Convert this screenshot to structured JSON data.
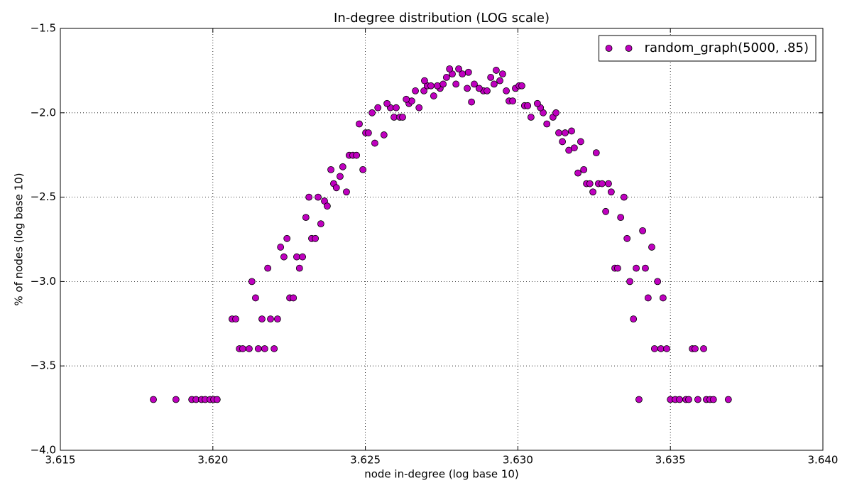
{
  "chart_data": {
    "type": "scatter",
    "title": "In-degree distribution (LOG scale)",
    "x_label": "node in-degree (log base 10)",
    "y_label": "% of nodes (log base 10)",
    "xlim": [
      3.615,
      3.64
    ],
    "ylim": [
      -4.0,
      -1.5
    ],
    "xticks": [
      3.615,
      {
        "value": 3.62,
        "label": "3.620"
      },
      3.625,
      {
        "value": 3.63,
        "label": "3.630"
      },
      3.635,
      {
        "value": 3.64,
        "label": "3.640"
      }
    ],
    "yticks": [
      {
        "value": -4.0,
        "label": "−4.0"
      },
      {
        "value": -3.5,
        "label": "−3.5"
      },
      {
        "value": -3.0,
        "label": "−3.0"
      },
      {
        "value": -2.5,
        "label": "−2.5"
      },
      {
        "value": -2.0,
        "label": "−2.0"
      },
      {
        "value": -1.5,
        "label": "−1.5"
      }
    ],
    "grid": true,
    "legend": "upper right",
    "x": [
      3.61805,
      3.61879,
      3.61931,
      3.61945,
      3.61963,
      3.61975,
      3.61991,
      3.62003,
      3.62014,
      3.63397,
      3.635,
      3.63516,
      3.6353,
      3.63551,
      3.6356,
      3.6359,
      3.63618,
      3.6363,
      3.63641,
      3.6369,
      3.62087,
      3.62098,
      3.62119,
      3.62149,
      3.6217,
      3.62201,
      3.63448,
      3.63469,
      3.63488,
      3.63572,
      3.63581,
      3.63609,
      3.62063,
      3.62075,
      3.62161,
      3.62189,
      3.62212,
      3.63379,
      3.6214,
      3.62252,
      3.62264,
      3.63427,
      3.63476,
      3.62128,
      3.63367,
      3.63458,
      3.6218,
      3.62284,
      3.63318,
      3.63327,
      3.63388,
      3.63418,
      3.62233,
      3.62275,
      3.62294,
      3.62222,
      3.63439,
      3.62243,
      3.62324,
      3.62336,
      3.63358,
      3.63409,
      3.62305,
      3.63337,
      3.62354,
      3.62315,
      3.62345,
      3.63348,
      3.62366,
      3.62375,
      3.63288,
      3.62438,
      3.63246,
      3.63306,
      3.62396,
      3.63225,
      3.63236,
      3.63264,
      3.63276,
      3.63297,
      3.62405,
      3.62417,
      3.62387,
      3.62492,
      3.63216,
      3.62426,
      3.63197,
      3.62447,
      3.62459,
      3.62471,
      3.63257,
      3.63167,
      3.63185,
      3.62531,
      3.63146,
      3.63206,
      3.62561,
      3.62501,
      3.6251,
      3.63134,
      3.63155,
      3.63176,
      3.6248,
      3.63095,
      3.62594,
      3.62613,
      3.62622,
      3.63043,
      3.63115,
      3.62522,
      3.63083,
      3.63125,
      3.62541,
      3.62582,
      3.62601,
      3.62676,
      3.63074,
      3.63022,
      3.63032,
      3.62571,
      3.62643,
      3.63064,
      3.62652,
      3.62971,
      3.62983,
      3.62634,
      3.62724,
      3.62664,
      3.62692,
      3.62887,
      3.62899,
      3.62962,
      3.62745,
      3.62834,
      3.62873,
      3.62992,
      3.62703,
      3.62715,
      3.62736,
      3.63004,
      3.63013,
      3.62755,
      3.62797,
      3.62857,
      3.62922,
      3.62694,
      3.62941,
      3.62766,
      3.62911,
      3.62785,
      3.62818,
      3.6295,
      3.62838,
      3.62929,
      3.62776,
      3.62806,
      3.62848
    ],
    "series": [
      {
        "name": "random_graph(5000, .85)",
        "color": "#bf00bf",
        "values": [
          -3.699,
          -3.699,
          -3.699,
          -3.699,
          -3.699,
          -3.699,
          -3.699,
          -3.699,
          -3.699,
          -3.699,
          -3.699,
          -3.699,
          -3.699,
          -3.699,
          -3.699,
          -3.699,
          -3.699,
          -3.699,
          -3.699,
          -3.699,
          -3.398,
          -3.398,
          -3.398,
          -3.398,
          -3.398,
          -3.398,
          -3.398,
          -3.398,
          -3.398,
          -3.398,
          -3.398,
          -3.398,
          -3.222,
          -3.222,
          -3.222,
          -3.222,
          -3.222,
          -3.222,
          -3.097,
          -3.097,
          -3.097,
          -3.097,
          -3.097,
          -3.0,
          -3.0,
          -3.0,
          -2.921,
          -2.921,
          -2.921,
          -2.921,
          -2.921,
          -2.921,
          -2.854,
          -2.854,
          -2.854,
          -2.796,
          -2.796,
          -2.745,
          -2.745,
          -2.745,
          -2.745,
          -2.699,
          -2.62,
          -2.62,
          -2.658,
          -2.5,
          -2.5,
          -2.5,
          -2.523,
          -2.553,
          -2.585,
          -2.469,
          -2.469,
          -2.469,
          -2.42,
          -2.42,
          -2.42,
          -2.42,
          -2.42,
          -2.42,
          -2.444,
          -2.377,
          -2.337,
          -2.337,
          -2.337,
          -2.32,
          -2.357,
          -2.252,
          -2.252,
          -2.252,
          -2.237,
          -2.222,
          -2.208,
          -2.18,
          -2.171,
          -2.171,
          -2.131,
          -2.119,
          -2.119,
          -2.119,
          -2.119,
          -2.108,
          -2.066,
          -2.066,
          -2.026,
          -2.026,
          -2.026,
          -2.026,
          -2.026,
          -2.0,
          -2.0,
          -2.0,
          -1.97,
          -1.97,
          -1.97,
          -1.97,
          -1.97,
          -1.958,
          -1.958,
          -1.945,
          -1.945,
          -1.945,
          -1.93,
          -1.93,
          -1.93,
          -1.92,
          -1.9,
          -1.87,
          -1.87,
          -1.87,
          -1.87,
          -1.87,
          -1.855,
          -1.855,
          -1.855,
          -1.855,
          -1.84,
          -1.84,
          -1.84,
          -1.84,
          -1.84,
          -1.83,
          -1.83,
          -1.83,
          -1.83,
          -1.81,
          -1.81,
          -1.79,
          -1.79,
          -1.77,
          -1.77,
          -1.77,
          -1.76,
          -1.748,
          -1.74,
          -1.74,
          -1.936
        ]
      }
    ]
  }
}
